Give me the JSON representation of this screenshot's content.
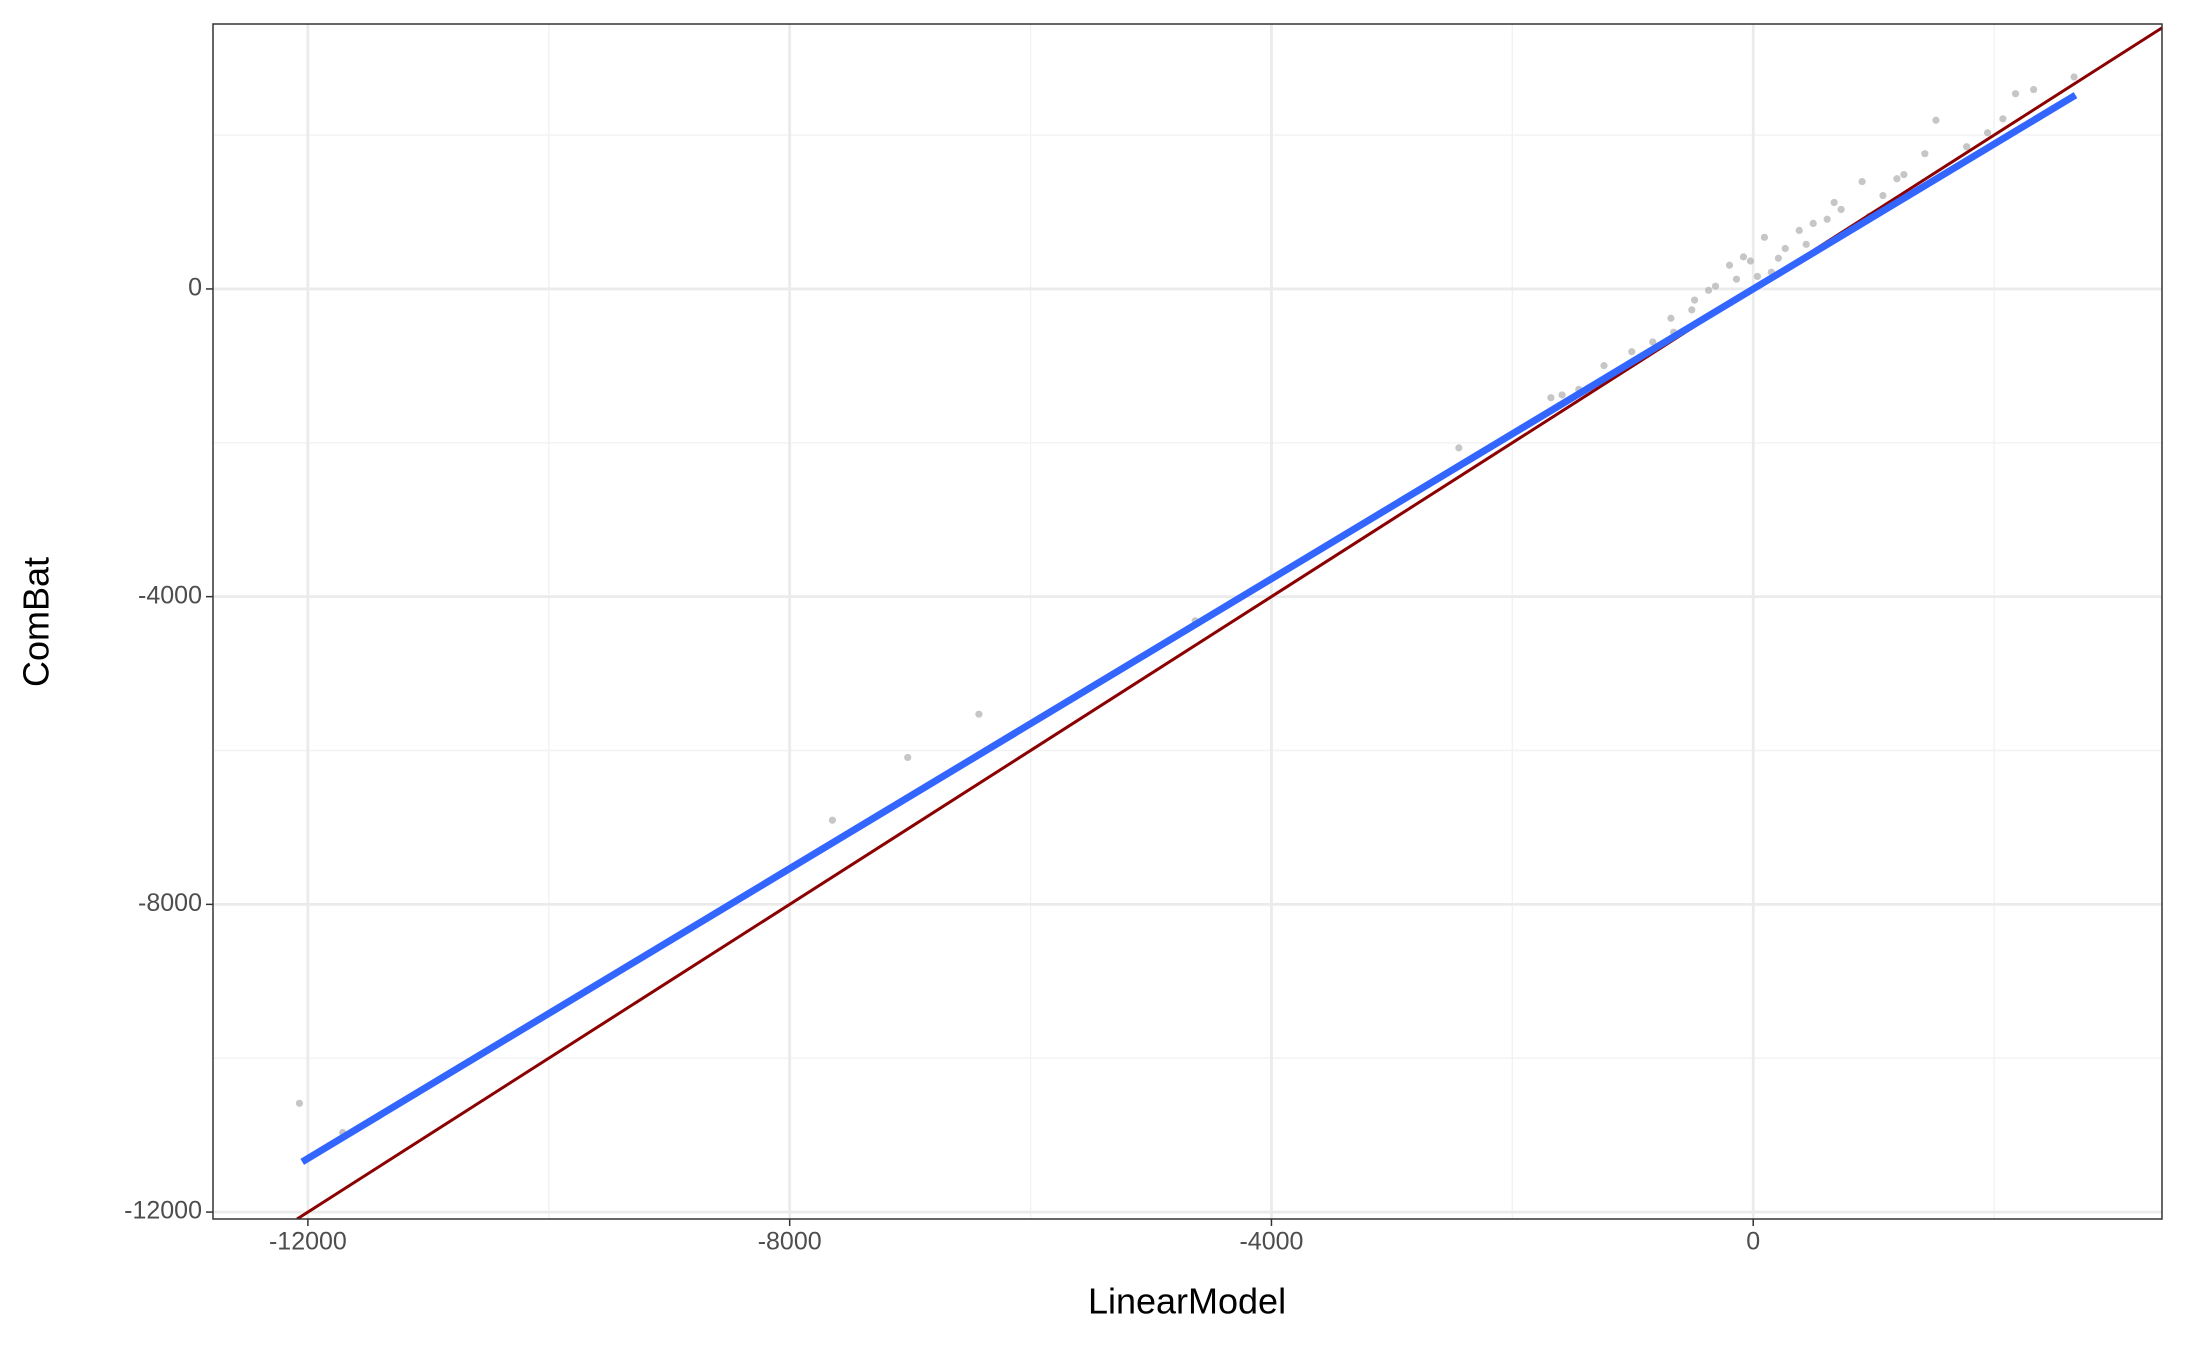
{
  "chart_data": {
    "type": "scatter",
    "x_label": "LinearModel",
    "y_label": "ComBat",
    "xlim": [
      -12788,
      3394
    ],
    "ylim": [
      -12090,
      3444
    ],
    "xticks": [
      -12000,
      -8000,
      -4000,
      0
    ],
    "yticks": [
      -12000,
      -8000,
      -4000,
      0
    ],
    "grid": true,
    "series": [
      {
        "color": "#b3b3b3",
        "x": [
          -12070,
          -11711,
          -7645,
          -7020,
          -6429,
          -4633,
          -2444,
          -1680,
          -1587,
          -1448,
          -1239,
          -1008,
          -834,
          -683,
          -660,
          -510,
          -487,
          -371,
          -313,
          -197,
          -139,
          -81,
          -23,
          35,
          93,
          151,
          209,
          266,
          382,
          440,
          498,
          614,
          672,
          730,
          904,
          961,
          1077,
          1193,
          1251,
          1425,
          1517,
          1772,
          1946,
          2073,
          2178,
          2328,
          2664
        ],
        "values": [
          -10586,
          -10966,
          -6906,
          -6090,
          -5528,
          -4314,
          -2066,
          -1414,
          -1378,
          -1305,
          -997,
          -816,
          -689,
          -381,
          -562,
          -272,
          -145,
          -18,
          36,
          308,
          127,
          417,
          363,
          163,
          671,
          218,
          399,
          526,
          761,
          580,
          852,
          906,
          1124,
          1033,
          1396,
          943,
          1214,
          1432,
          1486,
          1758,
          2193,
          1849,
          2030,
          2211,
          2538,
          2592,
          2755
        ]
      }
    ],
    "lines": [
      {
        "color": "#8b0000",
        "x": [
          -12090,
          3394
        ],
        "values": [
          -12090,
          3394
        ]
      },
      {
        "color": "#3366ff",
        "x": [
          -12047,
          2676
        ],
        "values": [
          -11347,
          2520
        ]
      }
    ]
  }
}
